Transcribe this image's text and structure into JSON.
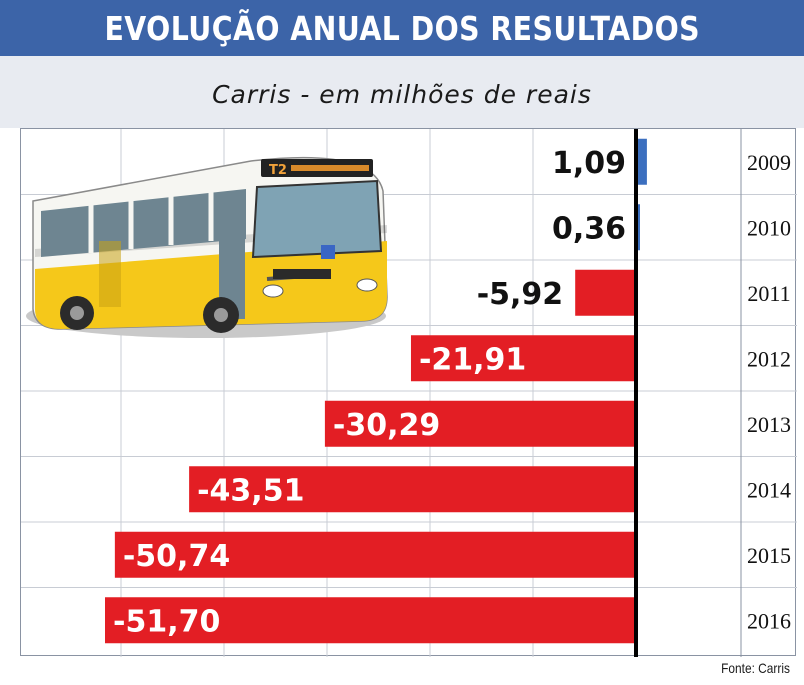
{
  "header": {
    "title": "EVOLUÇÃO ANUAL DOS RESULTADOS"
  },
  "chart_data": {
    "type": "bar",
    "orientation": "horizontal",
    "title": "EVOLUÇÃO ANUAL DOS RESULTADOS",
    "subtitle": "Carris - em milhões de reais",
    "categories": [
      "2009",
      "2010",
      "2011",
      "2012",
      "2013",
      "2014",
      "2015",
      "2016"
    ],
    "values": [
      1.09,
      0.36,
      -5.92,
      -21.91,
      -30.29,
      -43.51,
      -50.74,
      -51.7
    ],
    "labels": [
      "1,09",
      "0,36",
      "-5,92",
      "-21,91",
      "-30,29",
      "-43,51",
      "-50,74",
      "-51,70"
    ],
    "positive_color": "#3b6fbf",
    "negative_color": "#e31e24",
    "xlim": [
      -51.7,
      1.09
    ],
    "grid": true,
    "source": "Fonte: Carris"
  },
  "illustration": {
    "icon": "bus-icon",
    "route_sign": "T2"
  },
  "colors": {
    "header_bg": "#3c64a8",
    "panel_bg": "#e8ebf1",
    "axis": "#000000",
    "grid": "#c8ccd4"
  }
}
